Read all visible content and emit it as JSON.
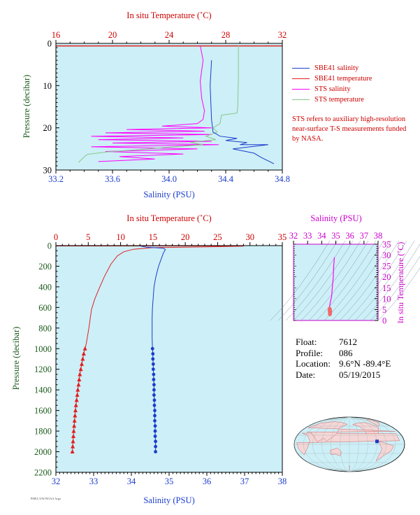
{
  "colors": {
    "plot_bg": "#cdeff7",
    "salinity": "#1a3ccc",
    "temperature": "#e02020",
    "sts_salinity": "#ff00ff",
    "sts_temperature": "#88c888",
    "temp_axis": "#cc0000",
    "sal_axis": "#1a3ccc",
    "pressure_axis": "#1a5a1a",
    "ts_axis": "#cc00cc"
  },
  "chart_data": [
    {
      "type": "line",
      "title": "",
      "top_axis_label": "In situ Temperature (˚C)",
      "top_ticks": [
        "16",
        "20",
        "24",
        "28",
        "32"
      ],
      "top_range": [
        16,
        32
      ],
      "xlabel": "Salinity (PSU)",
      "x_ticks": [
        "33.2",
        "33.6",
        "34.0",
        "34.4",
        "34.8"
      ],
      "xlim": [
        33.2,
        34.8
      ],
      "ylabel": "Pressure (decibar)",
      "y_ticks": [
        "0",
        "10",
        "20",
        "30"
      ],
      "ylim": [
        0,
        30
      ],
      "series": [
        {
          "name": "SBE41 salinity",
          "axis": "salinity",
          "points": [
            [
              34.3,
              4
            ],
            [
              34.29,
              10
            ],
            [
              34.3,
              18
            ],
            [
              34.31,
              21
            ],
            [
              34.36,
              22
            ],
            [
              34.48,
              22.5
            ],
            [
              34.4,
              23
            ],
            [
              34.55,
              23.5
            ],
            [
              34.5,
              24
            ],
            [
              34.7,
              24
            ],
            [
              34.45,
              25
            ],
            [
              34.6,
              26
            ],
            [
              34.65,
              27
            ],
            [
              34.74,
              28.5
            ]
          ]
        },
        {
          "name": "SBE41 temperature",
          "axis": "temperature",
          "points": [
            [
              16,
              0.6
            ],
            [
              32,
              0.6
            ]
          ]
        },
        {
          "name": "STS salinity",
          "axis": "salinity",
          "points": [
            [
              34.22,
              0.5
            ],
            [
              34.24,
              4
            ],
            [
              34.22,
              9
            ],
            [
              34.23,
              13
            ],
            [
              34.25,
              16
            ],
            [
              34.24,
              18
            ],
            [
              34.2,
              19
            ],
            [
              33.95,
              19.6
            ],
            [
              34.3,
              20
            ],
            [
              33.7,
              20.4
            ],
            [
              34.25,
              20.8
            ],
            [
              33.55,
              21.2
            ],
            [
              34.3,
              21.6
            ],
            [
              33.45,
              22
            ],
            [
              34.1,
              22.4
            ],
            [
              33.5,
              22.8
            ],
            [
              34.3,
              23.2
            ],
            [
              33.6,
              23.6
            ],
            [
              34.35,
              24
            ],
            [
              33.45,
              24.5
            ],
            [
              34.2,
              25
            ],
            [
              33.55,
              25.6
            ],
            [
              34.1,
              26.2
            ],
            [
              33.65,
              26.8
            ],
            [
              33.9,
              27.4
            ],
            [
              33.5,
              28
            ]
          ]
        },
        {
          "name": "STS temperature",
          "axis": "temperature",
          "points": [
            [
              28.9,
              0.5
            ],
            [
              28.9,
              8
            ],
            [
              28.85,
              15
            ],
            [
              28.8,
              16.5
            ],
            [
              27.7,
              17
            ],
            [
              27.6,
              19
            ],
            [
              27.1,
              20
            ],
            [
              27.4,
              21
            ],
            [
              26.6,
              22
            ],
            [
              27.3,
              22.8
            ],
            [
              25.5,
              23.4
            ],
            [
              26.4,
              24
            ],
            [
              24,
              24.6
            ],
            [
              21.8,
              25.2
            ],
            [
              19.6,
              25.7
            ],
            [
              18.2,
              26.3
            ],
            [
              17.9,
              27.2
            ],
            [
              17.6,
              28.2
            ]
          ]
        }
      ],
      "legend": [
        "SBE41 salinity",
        "SBE41 temperature",
        "STS salinity",
        "STS temperature"
      ],
      "legend_position": "right",
      "note": "STS refers to auxiliary high-resolution near-surface T-S measurements funded by NASA."
    },
    {
      "type": "line",
      "title": "",
      "top_axis_label": "In situ Temperature (˚C)",
      "top_ticks": [
        "0",
        "5",
        "10",
        "15",
        "20",
        "25",
        "30",
        "35"
      ],
      "top_range": [
        0,
        35
      ],
      "xlabel": "Salinity (PSU)",
      "x_ticks": [
        "32",
        "33",
        "34",
        "35",
        "36",
        "37",
        "38"
      ],
      "xlim": [
        32,
        38
      ],
      "ylabel": "Pressure (decibar)",
      "y_ticks": [
        "0",
        "200",
        "400",
        "600",
        "800",
        "1000",
        "1200",
        "1400",
        "1600",
        "1800",
        "2000",
        "2200"
      ],
      "ylim": [
        0,
        2200
      ],
      "series": [
        {
          "axis": "temperature",
          "line": [
            [
              29,
              5
            ],
            [
              25,
              10
            ],
            [
              20,
              15
            ],
            [
              15,
              20
            ],
            [
              12,
              35
            ],
            [
              10.5,
              60
            ],
            [
              9.5,
              100
            ],
            [
              8.5,
              180
            ],
            [
              7.5,
              300
            ],
            [
              6.8,
              400
            ],
            [
              6,
              520
            ],
            [
              5.5,
              620
            ],
            [
              5.1,
              800
            ],
            [
              4.7,
              950
            ],
            [
              4.5,
              1000
            ]
          ],
          "markers": [
            [
              4.5,
              1000
            ],
            [
              4.3,
              1050
            ],
            [
              4.15,
              1100
            ],
            [
              4.0,
              1150
            ],
            [
              3.85,
              1200
            ],
            [
              3.7,
              1250
            ],
            [
              3.6,
              1300
            ],
            [
              3.5,
              1350
            ],
            [
              3.38,
              1400
            ],
            [
              3.3,
              1450
            ],
            [
              3.2,
              1500
            ],
            [
              3.1,
              1550
            ],
            [
              3.02,
              1600
            ],
            [
              2.95,
              1650
            ],
            [
              2.88,
              1700
            ],
            [
              2.82,
              1750
            ],
            [
              2.75,
              1800
            ],
            [
              2.7,
              1850
            ],
            [
              2.65,
              1900
            ],
            [
              2.6,
              1950
            ],
            [
              2.55,
              2000
            ]
          ]
        },
        {
          "axis": "salinity",
          "line": [
            [
              34.25,
              5
            ],
            [
              34.4,
              15
            ],
            [
              34.85,
              25
            ],
            [
              34.9,
              40
            ],
            [
              34.85,
              70
            ],
            [
              34.8,
              120
            ],
            [
              34.72,
              200
            ],
            [
              34.65,
              300
            ],
            [
              34.6,
              400
            ],
            [
              34.58,
              500
            ],
            [
              34.56,
              600
            ],
            [
              34.55,
              700
            ],
            [
              34.55,
              800
            ],
            [
              34.55,
              900
            ],
            [
              34.56,
              1000
            ]
          ],
          "markers": [
            [
              34.56,
              1000
            ],
            [
              34.57,
              1050
            ],
            [
              34.57,
              1100
            ],
            [
              34.58,
              1150
            ],
            [
              34.58,
              1200
            ],
            [
              34.59,
              1250
            ],
            [
              34.59,
              1300
            ],
            [
              34.6,
              1350
            ],
            [
              34.6,
              1400
            ],
            [
              34.6,
              1450
            ],
            [
              34.61,
              1500
            ],
            [
              34.61,
              1550
            ],
            [
              34.62,
              1600
            ],
            [
              34.62,
              1650
            ],
            [
              34.62,
              1700
            ],
            [
              34.63,
              1750
            ],
            [
              34.63,
              1800
            ],
            [
              34.63,
              1850
            ],
            [
              34.64,
              1900
            ],
            [
              34.64,
              1950
            ],
            [
              34.64,
              2000
            ]
          ]
        }
      ]
    },
    {
      "type": "scatter",
      "title": "",
      "top_axis_label": "Salinity (PSU)",
      "top_ticks": [
        "32",
        "33",
        "34",
        "35",
        "36",
        "37",
        "38"
      ],
      "xlim": [
        32,
        38
      ],
      "right_axis_label": "In situ Temperature (˚C)",
      "y_ticks": [
        "0",
        "5",
        "10",
        "15",
        "20",
        "25",
        "30",
        "35"
      ],
      "ylim": [
        0,
        35
      ],
      "curve": [
        [
          34.9,
          29
        ],
        [
          34.85,
          25
        ],
        [
          34.82,
          20
        ],
        [
          34.75,
          15
        ],
        [
          34.7,
          11
        ],
        [
          34.6,
          8
        ],
        [
          34.55,
          6
        ]
      ],
      "dense": [
        [
          34.56,
          5.5
        ],
        [
          34.6,
          5
        ],
        [
          34.55,
          4.5
        ],
        [
          34.62,
          4
        ],
        [
          34.57,
          3.5
        ],
        [
          34.6,
          3
        ],
        [
          34.58,
          2.8
        ]
      ]
    }
  ],
  "info": {
    "float_label": "Float:",
    "float": "7612",
    "profile_label": "Profile:",
    "profile": "086",
    "location_label": "Location:",
    "location": "9.6°N  -89.4°E",
    "date_label": "Date:",
    "date": "05/19/2015"
  },
  "map": {
    "marker": [
      -89.4,
      9.6
    ]
  },
  "credit": "PMEL/UW/NOAA Argo"
}
